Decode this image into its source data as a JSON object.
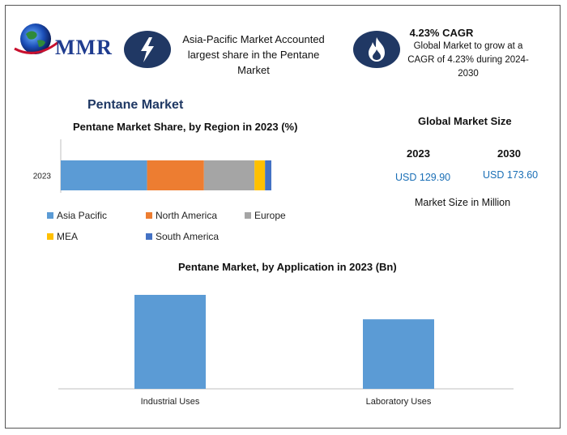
{
  "header": {
    "logo_text": "MMR",
    "highlight_text": "Asia-Pacific Market Accounted largest share in the Pentane Market",
    "cagr_title": "4.23% CAGR",
    "cagr_text": "Global Market to grow at a CAGR of 4.23% during 2024-2030"
  },
  "main_title": "Pentane Market",
  "global_market": {
    "title": "Global Market Size",
    "year_1": "2023",
    "year_2": "2030",
    "value_1": "USD 129.90",
    "value_2": "USD 173.60",
    "unit_note": "Market Size in Million"
  },
  "colors": {
    "asia_pacific": "#5b9bd5",
    "north_america": "#ed7d31",
    "europe": "#a5a5a5",
    "mea": "#ffc000",
    "south_america": "#4472c4",
    "header_icon": "#203864"
  },
  "icons": {
    "highlight": "lightning-bolt-icon",
    "cagr": "flame-icon",
    "logo": "globe-icon"
  },
  "chart_data": [
    {
      "type": "bar",
      "orientation": "horizontal-stacked",
      "title": "Pentane Market Share, by Region in 2023 (%)",
      "categories": [
        "2023"
      ],
      "series": [
        {
          "name": "Asia Pacific",
          "values": [
            41
          ]
        },
        {
          "name": "North America",
          "values": [
            27
          ]
        },
        {
          "name": "Europe",
          "values": [
            24
          ]
        },
        {
          "name": "MEA",
          "values": [
            5
          ]
        },
        {
          "name": "South America",
          "values": [
            3
          ]
        }
      ],
      "legend_placement": "bottom"
    },
    {
      "type": "bar",
      "title": "Pentane Market, by Application in 2023 (Bn)",
      "categories": [
        "Industrial Uses",
        "Laboratory Uses"
      ],
      "values": [
        100,
        74
      ],
      "ylim": [
        0,
        100
      ],
      "grid": false
    }
  ]
}
